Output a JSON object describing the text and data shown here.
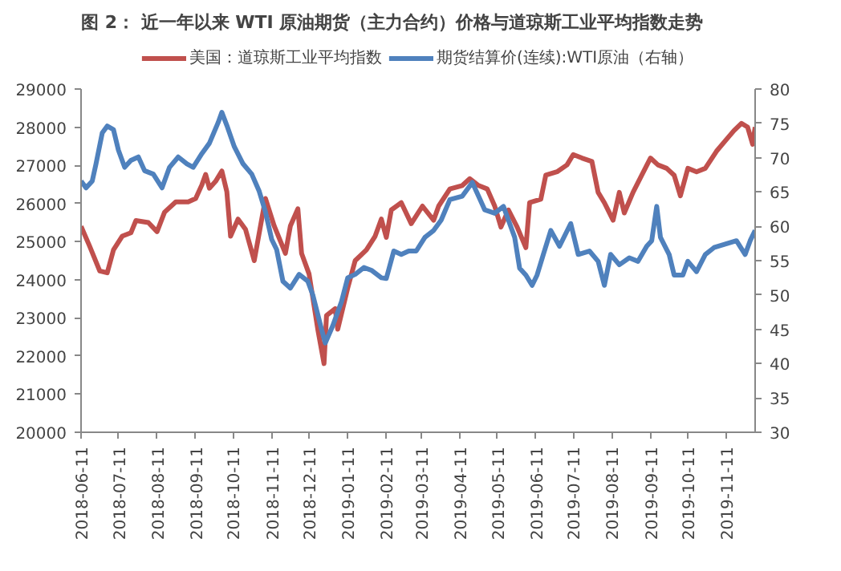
{
  "chart_data": {
    "type": "line",
    "title": "图 2： 近一年以来 WTI 原油期货（主力合约）价格与道琼斯工业平均指数走势",
    "xlim": [
      "2018-06-11",
      "2019-12-04"
    ],
    "xticks": [
      "2018-06-11",
      "2018-07-11",
      "2018-08-11",
      "2018-09-11",
      "2018-10-11",
      "2018-11-11",
      "2018-12-11",
      "2019-01-11",
      "2019-02-11",
      "2019-03-11",
      "2019-04-11",
      "2019-05-11",
      "2019-06-11",
      "2019-07-11",
      "2019-08-11",
      "2019-09-11",
      "2019-10-11",
      "2019-11-11"
    ],
    "ylim": [
      20000,
      29000
    ],
    "yticks": [
      20000,
      21000,
      22000,
      23000,
      24000,
      25000,
      26000,
      27000,
      28000,
      29000
    ],
    "y2lim": [
      30,
      80
    ],
    "y2ticks": [
      30,
      35,
      40,
      45,
      50,
      55,
      60,
      65,
      70,
      75,
      80
    ],
    "legend": "top",
    "grid": false,
    "line_style": "solid",
    "series": [
      {
        "name": "美国：道琼斯工业平均指数",
        "color": "#c0504d",
        "x": [
          "2018-06-11",
          "2018-06-18",
          "2018-06-26",
          "2018-07-02",
          "2018-07-07",
          "2018-07-14",
          "2018-07-21",
          "2018-07-25",
          "2018-08-04",
          "2018-08-11",
          "2018-08-17",
          "2018-08-26",
          "2018-09-05",
          "2018-09-11",
          "2018-09-16",
          "2018-09-19",
          "2018-09-22",
          "2018-09-27",
          "2018-10-02",
          "2018-10-06",
          "2018-10-09",
          "2018-10-15",
          "2018-10-21",
          "2018-10-28",
          "2018-11-06",
          "2018-11-13",
          "2018-11-22",
          "2018-11-26",
          "2018-12-02",
          "2018-12-05",
          "2018-12-11",
          "2018-12-18",
          "2018-12-23",
          "2018-12-25",
          "2019-01-01",
          "2019-01-03",
          "2019-01-11",
          "2019-01-17",
          "2019-01-26",
          "2019-02-02",
          "2019-02-07",
          "2019-02-11",
          "2019-02-15",
          "2019-02-23",
          "2019-03-03",
          "2019-03-12",
          "2019-03-21",
          "2019-03-25",
          "2019-04-03",
          "2019-04-13",
          "2019-04-19",
          "2019-04-26",
          "2019-05-03",
          "2019-05-09",
          "2019-05-14",
          "2019-05-20",
          "2019-05-27",
          "2019-06-03",
          "2019-06-06",
          "2019-06-15",
          "2019-06-19",
          "2019-06-28",
          "2019-07-06",
          "2019-07-11",
          "2019-07-18",
          "2019-07-26",
          "2019-07-31",
          "2019-08-05",
          "2019-08-12",
          "2019-08-17",
          "2019-08-21",
          "2019-08-28",
          "2019-09-04",
          "2019-09-11",
          "2019-09-17",
          "2019-09-24",
          "2019-09-30",
          "2019-10-05",
          "2019-10-11",
          "2019-10-18",
          "2019-10-25",
          "2019-11-03",
          "2019-11-10",
          "2019-11-17",
          "2019-11-23",
          "2019-11-28",
          "2019-12-02",
          "2019-12-04"
        ],
        "values": [
          25400,
          24870,
          24230,
          24180,
          24780,
          25140,
          25230,
          25550,
          25500,
          25260,
          25770,
          26040,
          26040,
          26130,
          26490,
          26760,
          26400,
          26580,
          26850,
          26310,
          25140,
          25590,
          25320,
          24500,
          26130,
          25410,
          24690,
          25410,
          25860,
          24690,
          24150,
          22700,
          21800,
          23060,
          23240,
          22700,
          23780,
          24500,
          24780,
          25140,
          25590,
          25110,
          25830,
          26020,
          25470,
          25930,
          25560,
          25930,
          26380,
          26470,
          26650,
          26470,
          26380,
          25930,
          25380,
          25830,
          25380,
          24840,
          26020,
          26110,
          26740,
          26830,
          27010,
          27280,
          27190,
          27100,
          26290,
          26020,
          25560,
          26290,
          25750,
          26290,
          26740,
          27190,
          27010,
          26920,
          26740,
          26200,
          26920,
          26830,
          26920,
          27370,
          27640,
          27910,
          28100,
          28000,
          27550,
          28000
        ]
      },
      {
        "name": "期货结算价(连续):WTI原油（右轴）",
        "color": "#4f81bd",
        "axis": "y2",
        "x": [
          "2018-06-11",
          "2018-06-15",
          "2018-06-20",
          "2018-06-23",
          "2018-06-28",
          "2018-07-02",
          "2018-07-07",
          "2018-07-11",
          "2018-07-16",
          "2018-07-21",
          "2018-07-27",
          "2018-08-01",
          "2018-08-08",
          "2018-08-15",
          "2018-08-21",
          "2018-08-28",
          "2018-09-04",
          "2018-09-09",
          "2018-09-16",
          "2018-09-22",
          "2018-09-29",
          "2018-10-02",
          "2018-10-06",
          "2018-10-12",
          "2018-10-19",
          "2018-10-26",
          "2018-11-01",
          "2018-11-06",
          "2018-11-11",
          "2018-11-15",
          "2018-11-20",
          "2018-11-26",
          "2018-12-03",
          "2018-12-10",
          "2018-12-14",
          "2018-12-21",
          "2018-12-24",
          "2018-12-30",
          "2019-01-06",
          "2019-01-11",
          "2019-01-17",
          "2019-01-24",
          "2019-01-30",
          "2019-02-07",
          "2019-02-11",
          "2019-02-17",
          "2019-02-23",
          "2019-03-01",
          "2019-03-07",
          "2019-03-14",
          "2019-03-21",
          "2019-03-27",
          "2019-04-03",
          "2019-04-13",
          "2019-04-21",
          "2019-04-26",
          "2019-05-01",
          "2019-05-09",
          "2019-05-16",
          "2019-05-20",
          "2019-05-25",
          "2019-05-29",
          "2019-06-03",
          "2019-06-08",
          "2019-06-12",
          "2019-06-17",
          "2019-06-23",
          "2019-06-30",
          "2019-07-09",
          "2019-07-15",
          "2019-07-24",
          "2019-07-31",
          "2019-08-05",
          "2019-08-10",
          "2019-08-17",
          "2019-08-25",
          "2019-09-01",
          "2019-09-08",
          "2019-09-12",
          "2019-09-16",
          "2019-09-19",
          "2019-09-26",
          "2019-09-30",
          "2019-10-07",
          "2019-10-11",
          "2019-10-18",
          "2019-10-25",
          "2019-11-01",
          "2019-11-10",
          "2019-11-19",
          "2019-11-26",
          "2019-11-30",
          "2019-12-04"
        ],
        "values": [
          66.6,
          65.6,
          66.6,
          69.1,
          73.6,
          74.6,
          74.1,
          71.1,
          68.6,
          69.6,
          70.1,
          68.1,
          67.6,
          65.6,
          68.6,
          70.1,
          69.1,
          68.6,
          70.6,
          72.1,
          75.1,
          76.6,
          74.7,
          71.6,
          69.1,
          67.6,
          65.1,
          62.1,
          58.1,
          56.6,
          52.0,
          51.0,
          53.0,
          52.0,
          50.0,
          45.0,
          43.0,
          45.5,
          49.0,
          52.5,
          53.0,
          54.0,
          53.6,
          52.5,
          52.4,
          56.4,
          55.9,
          56.4,
          56.4,
          58.4,
          59.4,
          60.9,
          63.9,
          64.4,
          66.4,
          64.4,
          62.4,
          61.9,
          62.9,
          60.9,
          58.4,
          53.9,
          52.9,
          51.4,
          52.9,
          55.9,
          59.4,
          57.1,
          60.4,
          55.9,
          56.4,
          54.9,
          51.4,
          55.9,
          54.4,
          55.4,
          54.9,
          57.1,
          57.9,
          62.9,
          58.4,
          55.9,
          52.9,
          52.9,
          54.9,
          53.4,
          55.9,
          56.9,
          57.4,
          57.9,
          55.9,
          57.9,
          59.4
        ]
      }
    ]
  }
}
